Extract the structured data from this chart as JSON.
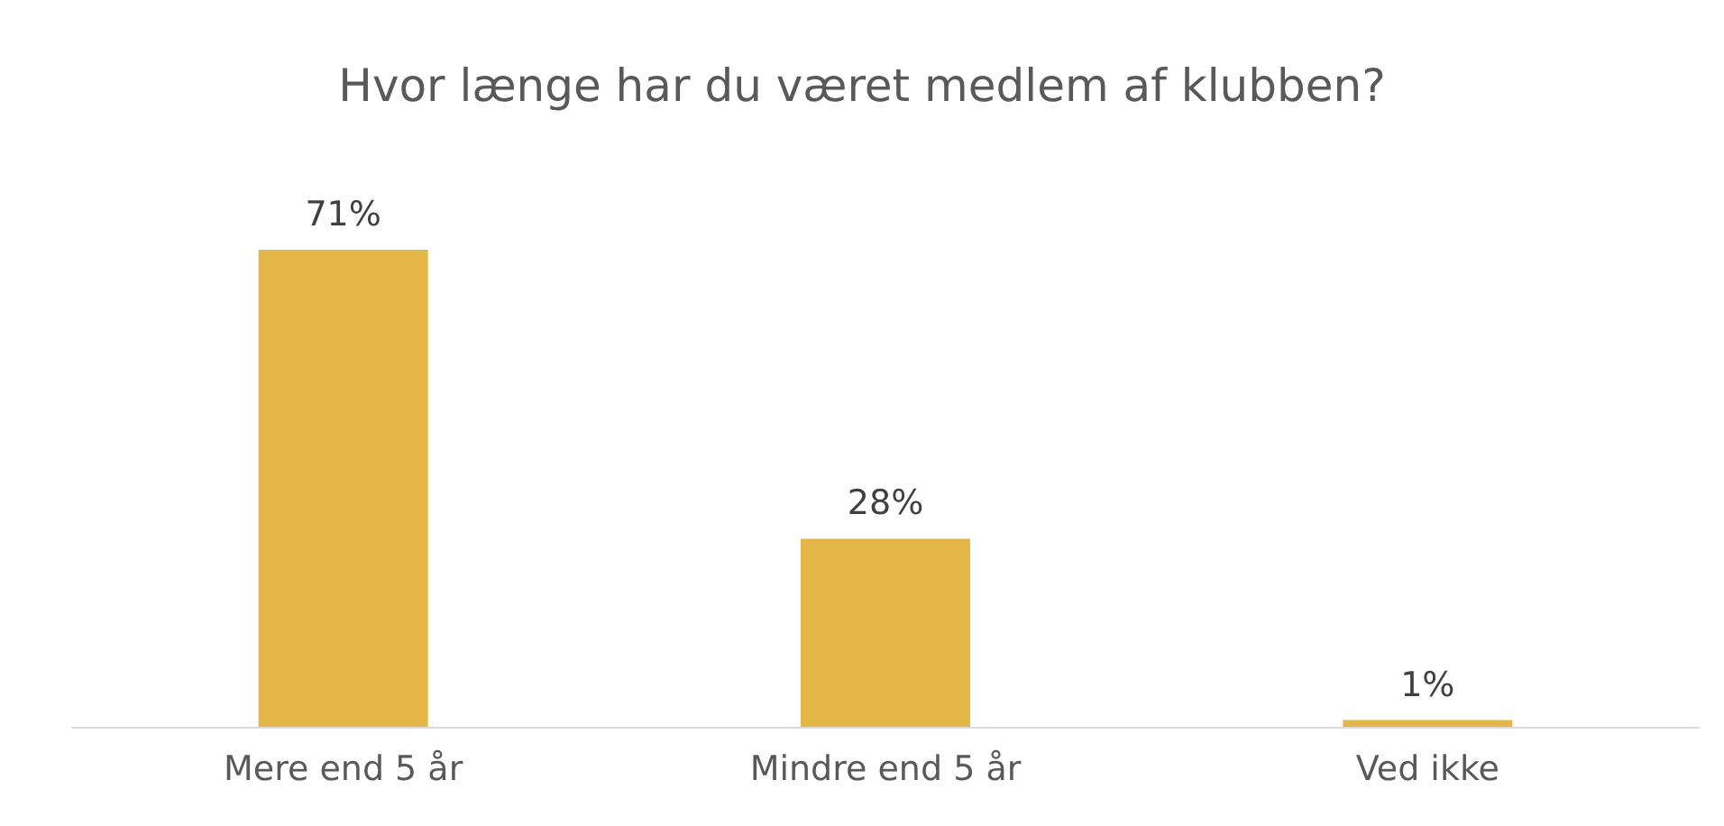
{
  "chart_data": {
    "type": "bar",
    "title": "Hvor længe har du været medlem af klubben?",
    "categories": [
      "Mere end 5 år",
      "Mindre end 5 år",
      "Ved ikke"
    ],
    "values": [
      71,
      28,
      1
    ],
    "value_labels": [
      "71%",
      "28%",
      "1%"
    ],
    "color": "#e3b647"
  }
}
